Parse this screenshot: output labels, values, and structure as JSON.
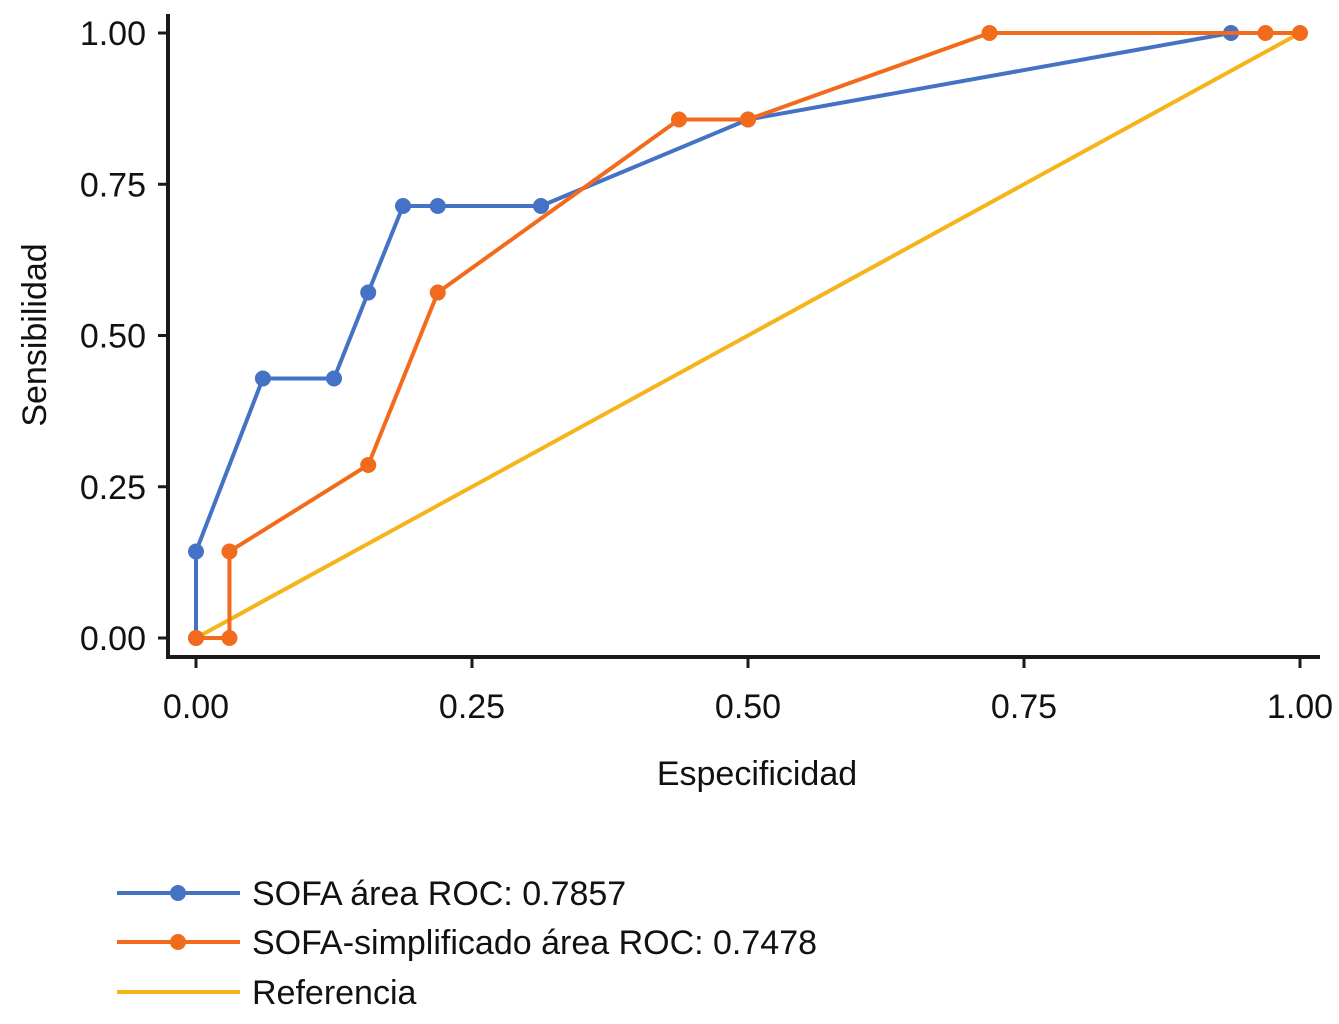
{
  "chart_data": {
    "type": "line",
    "title": "",
    "xlabel": "Especificidad",
    "ylabel": "Sensibilidad",
    "xlim": [
      0,
      1
    ],
    "ylim": [
      0,
      1
    ],
    "grid": false,
    "x_ticks": [
      "0.00",
      "0.25",
      "0.50",
      "0.75",
      "1.00"
    ],
    "y_ticks": [
      "0.00",
      "0.25",
      "0.50",
      "0.75",
      "1.00"
    ],
    "legend_position": "bottom-left",
    "series": [
      {
        "name": "SOFA área ROC: 0.7857",
        "color": "#4472C4",
        "markers": true,
        "points": [
          [
            0.0,
            0.0
          ],
          [
            0.0,
            0.143
          ],
          [
            0.0606,
            0.429
          ],
          [
            0.125,
            0.429
          ],
          [
            0.156,
            0.571
          ],
          [
            0.1875,
            0.714
          ],
          [
            0.219,
            0.714
          ],
          [
            0.3125,
            0.714
          ],
          [
            0.5,
            0.857
          ],
          [
            0.9375,
            1.0
          ]
        ]
      },
      {
        "name": "SOFA-simplificado área ROC: 0.7478",
        "color": "#F26B1D",
        "markers": true,
        "points": [
          [
            0.0,
            0.0
          ],
          [
            0.0303,
            0.0
          ],
          [
            0.0303,
            0.143
          ],
          [
            0.156,
            0.286
          ],
          [
            0.219,
            0.571
          ],
          [
            0.4375,
            0.857
          ],
          [
            0.5,
            0.857
          ],
          [
            0.71875,
            1.0
          ],
          [
            0.96875,
            1.0
          ],
          [
            1.0,
            1.0
          ]
        ]
      },
      {
        "name": "Referencia",
        "color": "#F4B41A",
        "markers": false,
        "points": [
          [
            0.0,
            0.0
          ],
          [
            1.0,
            1.0
          ]
        ]
      }
    ]
  }
}
